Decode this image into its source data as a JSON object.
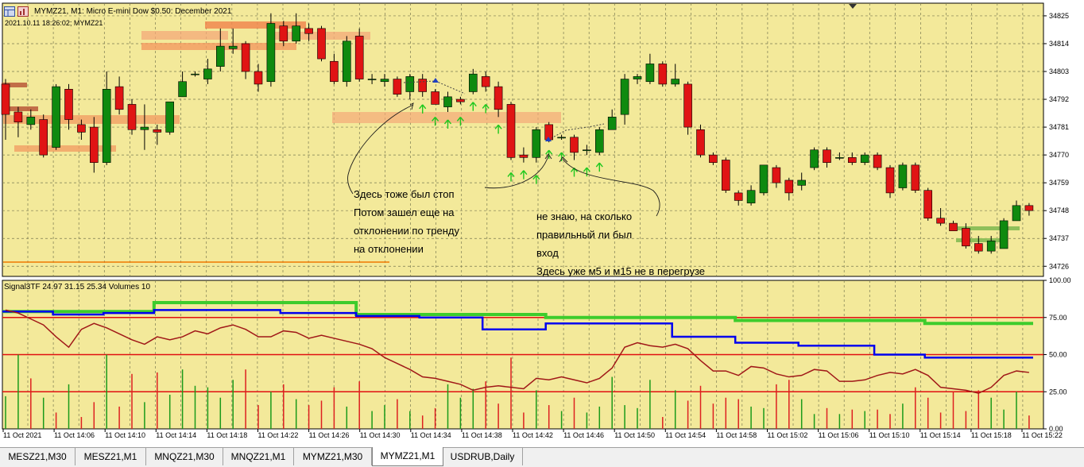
{
  "window": {
    "title": "MYMZ21, M1:  Micro E-mini Dow $0.50: December 2021",
    "timestamp": "2021.10.11 18:26:02; MYMZ21"
  },
  "indicator": {
    "label": "Signal3TF 24.97 31.15 25.34 Volumes 10"
  },
  "annotations": {
    "left": [
      "Здесь тоже был стоп",
      "Потом зашел еще на",
      "отклонении по тренду",
      "на отклонении"
    ],
    "right": [
      "не знаю, на сколько",
      "правильный ли был",
      "вход",
      " Здесь уже м5 и м15 не в перегрузе"
    ]
  },
  "tabs": [
    {
      "label": "MESZ21,M30",
      "active": false
    },
    {
      "label": "MESZ21,M1",
      "active": false
    },
    {
      "label": "MNQZ21,M30",
      "active": false
    },
    {
      "label": "MNQZ21,M1",
      "active": false
    },
    {
      "label": "MYMZ21,M30",
      "active": false
    },
    {
      "label": "MYMZ21,M1",
      "active": true
    },
    {
      "label": "USDRUB,Daily",
      "active": false
    }
  ],
  "colors": {
    "background": "#f3e99a",
    "grid": "#7a7a52",
    "bull": "#0f8a0f",
    "bear": "#e01414",
    "arrow": "#1ec81e",
    "zone_orange": "#f4a878",
    "zone_green": "#8fbf5a",
    "line_blue": "#0000ee",
    "line_green": "#3dcc2c",
    "line_brown": "#a01818",
    "level_red": "#e01010",
    "volume_green": "#1a9a1a",
    "volume_red": "#dd2020"
  },
  "chart_data": [
    {
      "type": "candlestick",
      "symbol": "MYMZ21",
      "timeframe": "M1",
      "y_ticks": [
        34825,
        34814,
        34803,
        34792,
        34781,
        34770,
        34759,
        34748,
        34737,
        34726
      ],
      "ylim": [
        34722,
        34830
      ],
      "x_ticks": [
        "11 Oct 2021",
        "11 Oct 14:06",
        "11 Oct 14:10",
        "11 Oct 14:14",
        "11 Oct 14:18",
        "11 Oct 14:22",
        "11 Oct 14:26",
        "11 Oct 14:30",
        "11 Oct 14:34",
        "11 Oct 14:38",
        "11 Oct 14:42",
        "11 Oct 14:46",
        "11 Oct 14:50",
        "11 Oct 14:54",
        "11 Oct 14:58",
        "11 Oct 15:02",
        "11 Oct 15:06",
        "11 Oct 15:10",
        "11 Oct 15:14",
        "11 Oct 15:18",
        "11 Oct 15:22"
      ],
      "candles": [
        [
          34798,
          34786,
          34800,
          34776
        ],
        [
          34787,
          34783,
          34789,
          34777
        ],
        [
          34782,
          34785,
          34788,
          34780
        ],
        [
          34784,
          34770,
          34786,
          34769
        ],
        [
          34773,
          34797,
          34798,
          34772
        ],
        [
          34796,
          34784,
          34798,
          34780
        ],
        [
          34782,
          34779,
          34784,
          34776
        ],
        [
          34781,
          34767,
          34785,
          34763
        ],
        [
          34767,
          34796,
          34803,
          34766
        ],
        [
          34797,
          34788,
          34801,
          34786
        ],
        [
          34790,
          34780,
          34792,
          34778
        ],
        [
          34780,
          34781,
          34790,
          34772
        ],
        [
          34780,
          34779,
          34782,
          34774
        ],
        [
          34779,
          34791,
          34791,
          34778
        ],
        [
          34793,
          34799,
          34803,
          34793
        ],
        [
          34802,
          34802,
          34803,
          34801
        ],
        [
          34800,
          34804,
          34808,
          34798
        ],
        [
          34805,
          34813,
          34820,
          34803
        ],
        [
          34812,
          34813,
          34820,
          34810
        ],
        [
          34814,
          34803,
          34815,
          34800
        ],
        [
          34803,
          34798,
          34806,
          34795
        ],
        [
          34799,
          34822,
          34826,
          34797
        ],
        [
          34821,
          34815,
          34823,
          34813
        ],
        [
          34815,
          34821,
          34826,
          34814
        ],
        [
          34820,
          34818,
          34822,
          34815
        ],
        [
          34820,
          34808,
          34821,
          34807
        ],
        [
          34807,
          34799,
          34810,
          34798
        ],
        [
          34799,
          34815,
          34817,
          34797
        ],
        [
          34817,
          34800,
          34820,
          34799
        ],
        [
          34800,
          34800,
          34802,
          34798
        ],
        [
          34799,
          34800,
          34802,
          34797
        ],
        [
          34800,
          34794,
          34801,
          34793
        ],
        [
          34795,
          34801,
          34802,
          34792
        ],
        [
          34800,
          34795,
          34802,
          34793
        ],
        [
          34795,
          34790,
          34796,
          34790
        ],
        [
          34789,
          34793,
          34795,
          34787
        ],
        [
          34792,
          34791,
          34793,
          34790
        ],
        [
          34795,
          34802,
          34804,
          34794
        ],
        [
          34801,
          34797,
          34803,
          34795
        ],
        [
          34797,
          34788,
          34799,
          34785
        ],
        [
          34790,
          34769,
          34791,
          34768
        ],
        [
          34770,
          34769,
          34773,
          34767
        ],
        [
          34769,
          34780,
          34781,
          34767
        ],
        [
          34782,
          34776,
          34783,
          34775
        ],
        [
          34777,
          34777,
          34778,
          34776
        ],
        [
          34777,
          34771,
          34778,
          34768
        ],
        [
          34772,
          34772,
          34774,
          34770
        ],
        [
          34771,
          34780,
          34781,
          34770
        ],
        [
          34780,
          34785,
          34788,
          34780
        ],
        [
          34786,
          34800,
          34802,
          34782
        ],
        [
          34800,
          34801,
          34802,
          34798
        ],
        [
          34799,
          34806,
          34810,
          34798
        ],
        [
          34806,
          34798,
          34807,
          34797
        ],
        [
          34798,
          34800,
          34806,
          34797
        ],
        [
          34798,
          34781,
          34799,
          34778
        ],
        [
          34780,
          34770,
          34782,
          34769
        ],
        [
          34770,
          34767,
          34771,
          34766
        ],
        [
          34768,
          34756,
          34769,
          34755
        ],
        [
          34755,
          34752,
          34756,
          34750
        ],
        [
          34751,
          34756,
          34758,
          34750
        ],
        [
          34755,
          34766,
          34766,
          34754
        ],
        [
          34765,
          34759,
          34766,
          34757
        ],
        [
          34760,
          34755,
          34761,
          34752
        ],
        [
          34758,
          34760,
          34763,
          34756
        ],
        [
          34765,
          34772,
          34773,
          34764
        ],
        [
          34772,
          34767,
          34773,
          34765
        ],
        [
          34769,
          34769,
          34771,
          34768
        ],
        [
          34769,
          34767,
          34771,
          34766
        ],
        [
          34767,
          34770,
          34771,
          34766
        ],
        [
          34770,
          34765,
          34771,
          34764
        ],
        [
          34765,
          34755,
          34766,
          34753
        ],
        [
          34757,
          34766,
          34767,
          34756
        ],
        [
          34766,
          34756,
          34767,
          34755
        ],
        [
          34756,
          34745,
          34757,
          34744
        ],
        [
          34745,
          34743,
          34749,
          34742
        ],
        [
          34743,
          34740,
          34744,
          34740
        ],
        [
          34741,
          34734,
          34743,
          34733
        ],
        [
          34735,
          34732,
          34738,
          34731
        ],
        [
          34732,
          34736,
          34738,
          34731
        ],
        [
          34733,
          34744,
          34745,
          34733
        ],
        [
          34744,
          34750,
          34752,
          34744
        ],
        [
          34750,
          34748,
          34751,
          34746
        ]
      ],
      "arrows_at_bar": [
        33,
        34,
        35,
        36,
        37,
        38,
        39,
        40,
        41,
        42,
        43,
        44,
        45,
        46,
        47
      ]
    },
    {
      "type": "line",
      "title": "Signal3TF 24.97 31.15 25.34 Volumes 10",
      "y_ticks": [
        100.0,
        75.0,
        50.0,
        25.0,
        0.0
      ],
      "ylim": [
        0,
        100
      ],
      "levels": [
        75,
        50,
        25
      ],
      "series": [
        {
          "color": "green",
          "segments": [
            [
              0,
              12,
              79
            ],
            [
              12,
              28,
              85
            ],
            [
              28,
              43,
              77
            ],
            [
              43,
              58,
              75
            ],
            [
              58,
              73,
              73
            ],
            [
              73,
              82,
              71
            ]
          ]
        },
        {
          "color": "blue",
          "segments": [
            [
              0,
              4,
              79
            ],
            [
              4,
              8,
              77
            ],
            [
              8,
              12,
              78
            ],
            [
              12,
              22,
              80
            ],
            [
              22,
              28,
              78
            ],
            [
              28,
              33,
              76
            ],
            [
              33,
              38,
              75
            ],
            [
              38,
              43,
              67
            ],
            [
              43,
              53,
              71
            ],
            [
              53,
              58,
              62
            ],
            [
              58,
              63,
              58
            ],
            [
              63,
              69,
              56
            ],
            [
              69,
              73,
              50
            ],
            [
              73,
              79,
              48
            ],
            [
              79,
              82,
              48
            ]
          ]
        },
        {
          "color": "brown",
          "values": [
            80,
            78,
            74,
            70,
            62,
            55,
            67,
            71,
            68,
            64,
            60,
            57,
            62,
            60,
            62,
            66,
            64,
            68,
            70,
            67,
            62,
            62,
            66,
            65,
            61,
            63,
            61,
            59,
            57,
            54,
            48,
            44,
            40,
            35,
            34,
            32,
            30,
            26,
            28,
            29,
            28,
            27,
            34,
            33,
            35,
            33,
            31,
            34,
            41,
            55,
            58,
            56,
            55,
            57,
            54,
            46,
            39,
            39,
            36,
            42,
            41,
            37,
            35,
            36,
            40,
            39,
            32,
            32,
            33,
            36,
            38,
            37,
            40,
            36,
            28,
            27,
            26,
            24,
            28,
            36,
            39,
            38
          ]
        }
      ],
      "volumes": [
        22,
        50,
        34,
        21,
        11,
        30,
        8,
        18,
        50,
        15,
        37,
        18,
        38,
        23,
        40,
        29,
        28,
        21,
        33,
        40,
        16,
        25,
        30,
        20,
        16,
        19,
        28,
        15,
        32,
        12,
        16,
        20,
        12,
        9,
        14,
        30,
        21,
        27,
        32,
        17,
        48,
        11,
        26,
        16,
        12,
        21,
        11,
        15,
        35,
        16,
        14,
        33,
        8,
        26,
        19,
        29,
        17,
        21,
        20,
        15,
        14,
        30,
        33,
        20,
        10,
        14,
        10,
        13,
        12,
        13,
        10,
        17,
        28,
        21,
        11,
        25,
        12,
        26,
        21,
        13,
        25,
        9
      ],
      "volume_colors": [
        "g",
        "g",
        "r",
        "g",
        "r",
        "g",
        "r",
        "r",
        "g",
        "r",
        "r",
        "g",
        "r",
        "g",
        "g",
        "g",
        "g",
        "g",
        "g",
        "r",
        "r",
        "g",
        "r",
        "g",
        "r",
        "r",
        "r",
        "g",
        "r",
        "g",
        "g",
        "r",
        "g",
        "r",
        "r",
        "g",
        "g",
        "g",
        "r",
        "r",
        "r",
        "r",
        "g",
        "r",
        "g",
        "r",
        "g",
        "g",
        "g",
        "g",
        "g",
        "g",
        "r",
        "g",
        "r",
        "r",
        "r",
        "r",
        "r",
        "g",
        "g",
        "r",
        "r",
        "g",
        "g",
        "r",
        "g",
        "r",
        "g",
        "r",
        "r",
        "g",
        "r",
        "r",
        "r",
        "r",
        "r",
        "r",
        "g",
        "g",
        "g",
        "r"
      ]
    }
  ]
}
